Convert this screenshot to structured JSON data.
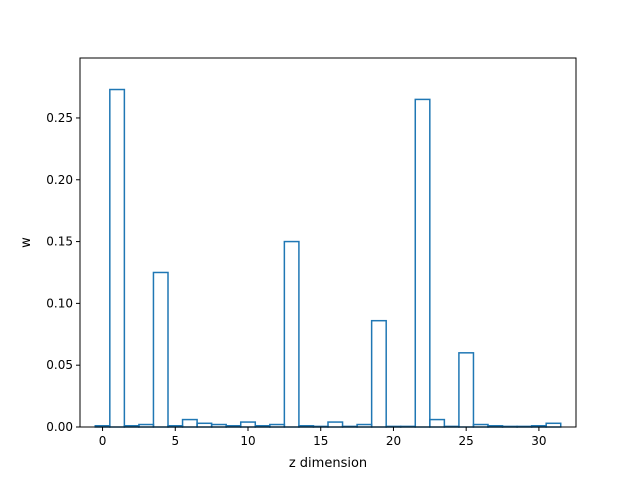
{
  "chart_data": {
    "type": "step",
    "title": "",
    "xlabel": "z dimension",
    "ylabel": "w",
    "xlim": [
      -1.55,
      32.55
    ],
    "ylim": [
      0,
      0.2985
    ],
    "xticks": [
      0,
      5,
      10,
      15,
      20,
      25,
      30
    ],
    "yticks": [
      0.0,
      0.05,
      0.1,
      0.15,
      0.2,
      0.25
    ],
    "xtick_labels": [
      "0",
      "5",
      "10",
      "15",
      "20",
      "25",
      "30"
    ],
    "ytick_labels": [
      "0.00",
      "0.05",
      "0.10",
      "0.15",
      "0.20",
      "0.25"
    ],
    "grid": false,
    "line_color": "#1f77b4",
    "x": [
      0,
      1,
      2,
      3,
      4,
      5,
      6,
      7,
      8,
      9,
      10,
      11,
      12,
      13,
      14,
      15,
      16,
      17,
      18,
      19,
      20,
      21,
      22,
      23,
      24,
      25,
      26,
      27,
      28,
      29,
      30,
      31
    ],
    "values": [
      0.001,
      0.273,
      0.001,
      0.002,
      0.125,
      0.001,
      0.006,
      0.003,
      0.002,
      0.001,
      0.004,
      0.001,
      0.002,
      0.15,
      0.001,
      0.0005,
      0.004,
      0.0005,
      0.002,
      0.086,
      0.0005,
      0.0005,
      0.265,
      0.006,
      0.0005,
      0.06,
      0.002,
      0.001,
      0.0005,
      0.0005,
      0.001,
      0.003
    ]
  }
}
